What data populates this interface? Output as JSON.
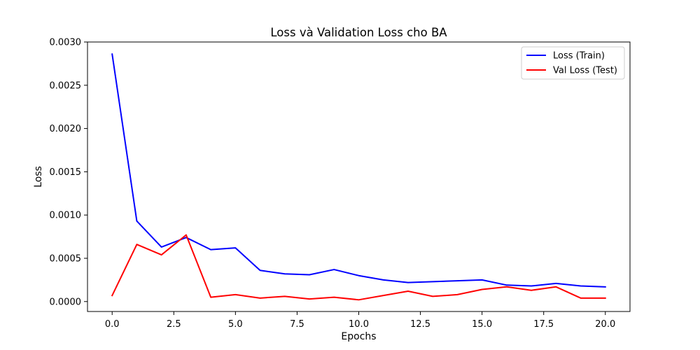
{
  "chart_data": {
    "type": "line",
    "title": "Loss và Validation Loss cho BA",
    "xlabel": "Epochs",
    "ylabel": "Loss",
    "xlim": [
      -1.0,
      21.0
    ],
    "ylim": [
      -0.000115,
      0.003
    ],
    "xticks": [
      0.0,
      2.5,
      5.0,
      7.5,
      10.0,
      12.5,
      15.0,
      17.5,
      20.0
    ],
    "xtick_labels": [
      "0.0",
      "2.5",
      "5.0",
      "7.5",
      "10.0",
      "12.5",
      "15.0",
      "17.5",
      "20.0"
    ],
    "yticks": [
      0.0,
      0.0005,
      0.001,
      0.0015,
      0.002,
      0.0025,
      0.003
    ],
    "ytick_labels": [
      "0.0000",
      "0.0005",
      "0.0010",
      "0.0015",
      "0.0020",
      "0.0025",
      "0.0030"
    ],
    "grid": false,
    "legend_position": "top-right",
    "x": [
      0,
      1,
      2,
      3,
      4,
      5,
      6,
      7,
      8,
      9,
      10,
      11,
      12,
      13,
      14,
      15,
      16,
      17,
      18,
      19,
      20
    ],
    "series": [
      {
        "name": "Loss (Train)",
        "color": "#0000ff",
        "values": [
          0.00286,
          0.00093,
          0.00063,
          0.00074,
          0.0006,
          0.00062,
          0.00036,
          0.00032,
          0.00031,
          0.00037,
          0.0003,
          0.00025,
          0.00022,
          0.00023,
          0.00024,
          0.00025,
          0.00019,
          0.00018,
          0.00021,
          0.00018,
          0.00017
        ]
      },
      {
        "name": "Val Loss (Test)",
        "color": "#ff0000",
        "values": [
          7e-05,
          0.00066,
          0.00054,
          0.00077,
          5e-05,
          8e-05,
          4e-05,
          6e-05,
          3e-05,
          5e-05,
          2e-05,
          7e-05,
          0.00012,
          6e-05,
          8e-05,
          0.00014,
          0.00017,
          0.00013,
          0.00017,
          4e-05,
          4e-05
        ]
      }
    ]
  }
}
